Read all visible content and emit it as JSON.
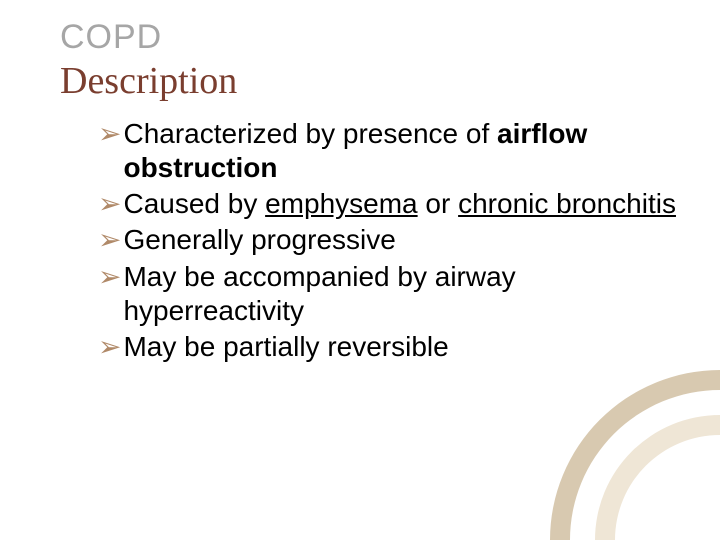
{
  "title": {
    "text": "COPD",
    "color": "#a6a6a6",
    "fontsize": 34,
    "weight": "400"
  },
  "subtitle": {
    "text": "Description",
    "color": "#7a3e2f",
    "fontsize": 38,
    "weight": "400"
  },
  "bullet_marker": {
    "glyph": "➢",
    "color": "#b08968",
    "fontsize": 28
  },
  "bullets": {
    "fontsize": 28,
    "color": "#000000",
    "items": [
      {
        "parts": [
          {
            "text": "Characterized by presence of "
          },
          {
            "text": "airflow obstruction",
            "bold": true
          }
        ]
      },
      {
        "parts": [
          {
            "text": "Caused by "
          },
          {
            "text": "emphysema",
            "underline": true
          },
          {
            "text": " or "
          },
          {
            "text": "chronic bronchitis",
            "underline": true
          }
        ]
      },
      {
        "parts": [
          {
            "text": "Generally progressive"
          }
        ]
      },
      {
        "parts": [
          {
            "text": "May be accompanied by airway hyperreactivity"
          }
        ]
      },
      {
        "parts": [
          {
            "text": "May be partially reversible"
          }
        ]
      }
    ]
  },
  "decoration": {
    "arc_outer_color": "#d8c9b0",
    "arc_inner_color": "#efe6d6",
    "background": "#ffffff"
  }
}
